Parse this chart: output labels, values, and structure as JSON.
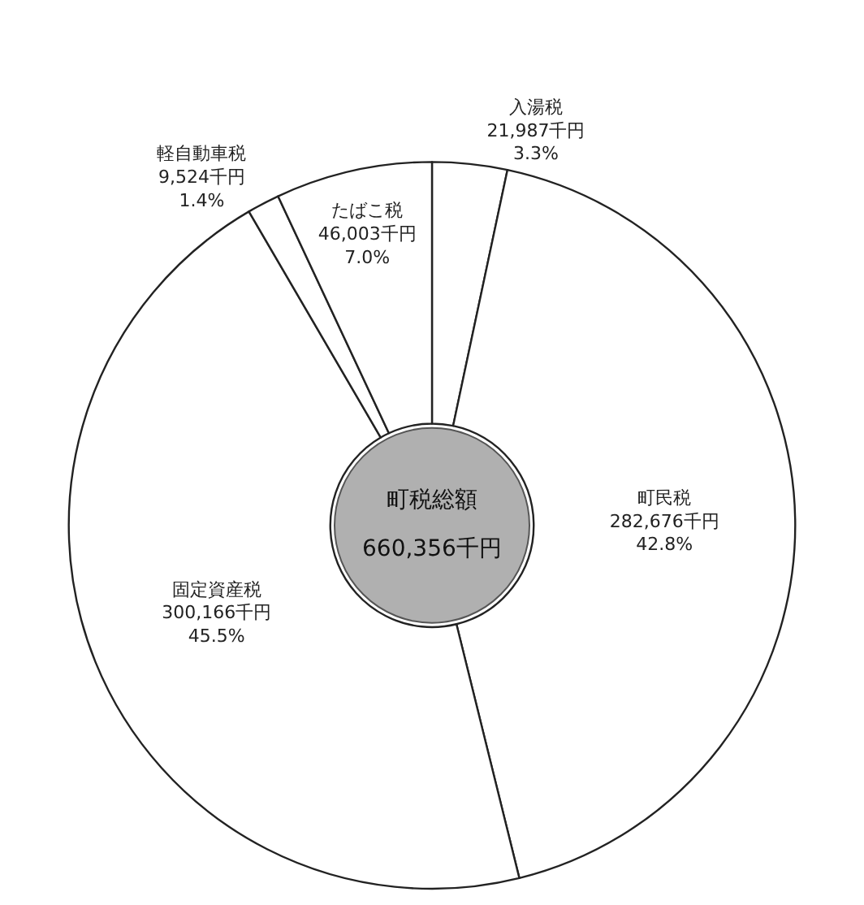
{
  "chart_data": {
    "type": "donut",
    "categories": [
      "入湯税",
      "町民税",
      "固定資産税",
      "軽自動車税",
      "たばこ税"
    ],
    "values": [
      21987,
      282676,
      300166,
      9524,
      46003
    ],
    "value_labels": [
      "21,987千円\n3.3%",
      "282,676千円\n42.8%",
      "300,166千円\n45.5%",
      "9,524千円\n1.4%",
      "46,003千円\n7.0%"
    ],
    "colors": [
      "#ffffff",
      "#ffffff",
      "#ffffff",
      "#ffffff",
      "#ffffff"
    ],
    "annotations": [
      "町税総額",
      "660,356千円"
    ],
    "legend": false
  }
}
